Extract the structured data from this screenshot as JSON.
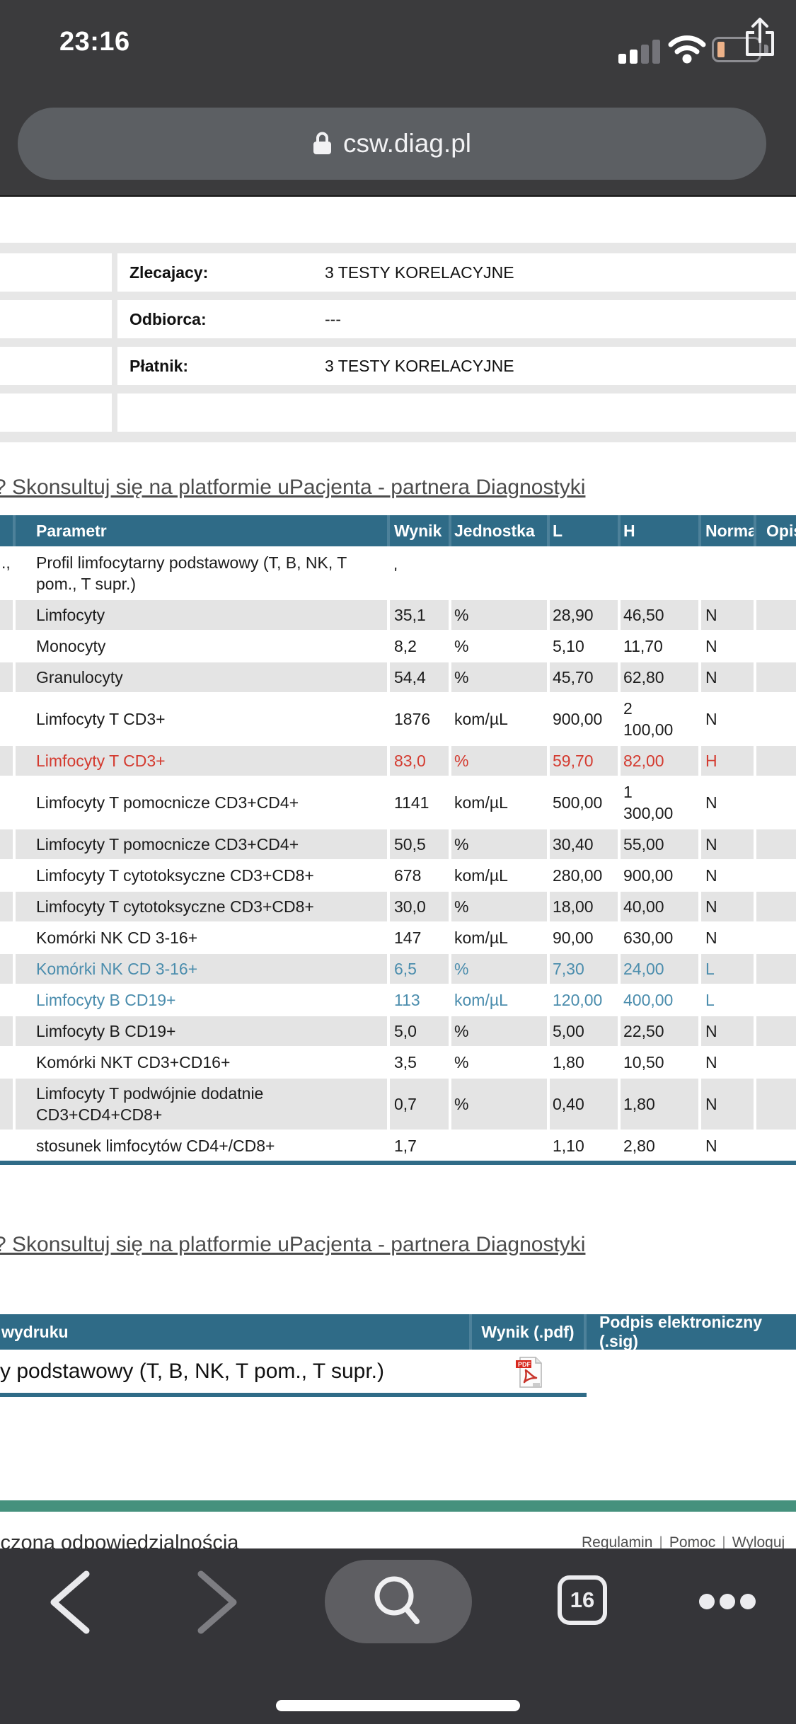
{
  "status_bar": {
    "time": "23:16"
  },
  "url_bar": {
    "domain": "csw.diag.pl"
  },
  "info_table": {
    "rows": [
      {
        "label": "Zlecajacy:",
        "value": "3 TESTY KORELACYJNE"
      },
      {
        "label": "Odbiorca:",
        "value": "---"
      },
      {
        "label": "Płatnik:",
        "value": "3 TESTY KORELACYJNE"
      },
      {
        "label": "",
        "value": ""
      }
    ]
  },
  "consult_link_text": "? Skonsultuj się na platformie uPacjenta - partnera Diagnostyki",
  "results_table": {
    "headers": [
      "Parametr",
      "Wynik",
      "Jednostka",
      "L",
      "H",
      "Norma",
      "Opis"
    ],
    "rows": [
      {
        "frag": ".,",
        "param": "Profil limfocytarny podstawowy (T, B, NK, T pom., T supr.)",
        "wynik": "'",
        "jednostka": "",
        "l": "",
        "h": "",
        "norma": "",
        "opis": "",
        "color": "black",
        "shade": "white"
      },
      {
        "frag": "",
        "param": "Limfocyty",
        "wynik": "35,1",
        "jednostka": "%",
        "l": "28,90",
        "h": "46,50",
        "norma": "N",
        "opis": "",
        "color": "black",
        "shade": "grey"
      },
      {
        "frag": "",
        "param": "Monocyty",
        "wynik": "8,2",
        "jednostka": "%",
        "l": "5,10",
        "h": "11,70",
        "norma": "N",
        "opis": "",
        "color": "black",
        "shade": "white"
      },
      {
        "frag": "",
        "param": "Granulocyty",
        "wynik": "54,4",
        "jednostka": "%",
        "l": "45,70",
        "h": "62,80",
        "norma": "N",
        "opis": "",
        "color": "black",
        "shade": "grey"
      },
      {
        "frag": "",
        "param": "Limfocyty T CD3+",
        "wynik": "1876",
        "jednostka": "kom/µL",
        "l": "900,00",
        "h": "2 100,00",
        "norma": "N",
        "opis": "",
        "color": "black",
        "shade": "white"
      },
      {
        "frag": "",
        "param": "Limfocyty T CD3+",
        "wynik": "83,0",
        "jednostka": "%",
        "l": "59,70",
        "h": "82,00",
        "norma": "H",
        "opis": "",
        "color": "red",
        "shade": "grey"
      },
      {
        "frag": "",
        "param": "Limfocyty T pomocnicze CD3+CD4+",
        "wynik": "1141",
        "jednostka": "kom/µL",
        "l": "500,00",
        "h": "1 300,00",
        "norma": "N",
        "opis": "",
        "color": "black",
        "shade": "white"
      },
      {
        "frag": "",
        "param": "Limfocyty T pomocnicze CD3+CD4+",
        "wynik": "50,5",
        "jednostka": "%",
        "l": "30,40",
        "h": "55,00",
        "norma": "N",
        "opis": "",
        "color": "black",
        "shade": "grey"
      },
      {
        "frag": "",
        "param": "Limfocyty T cytotoksyczne CD3+CD8+",
        "wynik": "678",
        "jednostka": "kom/µL",
        "l": "280,00",
        "h": "900,00",
        "norma": "N",
        "opis": "",
        "color": "black",
        "shade": "white"
      },
      {
        "frag": "",
        "param": "Limfocyty T cytotoksyczne CD3+CD8+",
        "wynik": "30,0",
        "jednostka": "%",
        "l": "18,00",
        "h": "40,00",
        "norma": "N",
        "opis": "",
        "color": "black",
        "shade": "grey"
      },
      {
        "frag": "",
        "param": "Komórki NK CD 3-16+",
        "wynik": "147",
        "jednostka": "kom/µL",
        "l": "90,00",
        "h": "630,00",
        "norma": "N",
        "opis": "",
        "color": "black",
        "shade": "white"
      },
      {
        "frag": "",
        "param": "Komórki NK CD 3-16+",
        "wynik": "6,5",
        "jednostka": "%",
        "l": "7,30",
        "h": "24,00",
        "norma": "L",
        "opis": "",
        "color": "blue",
        "shade": "grey"
      },
      {
        "frag": "",
        "param": "Limfocyty B CD19+",
        "wynik": "113",
        "jednostka": "kom/µL",
        "l": "120,00",
        "h": "400,00",
        "norma": "L",
        "opis": "",
        "color": "blue",
        "shade": "white"
      },
      {
        "frag": "",
        "param": "Limfocyty B CD19+",
        "wynik": "5,0",
        "jednostka": "%",
        "l": "5,00",
        "h": "22,50",
        "norma": "N",
        "opis": "",
        "color": "black",
        "shade": "grey"
      },
      {
        "frag": "",
        "param": "Komórki NKT CD3+CD16+",
        "wynik": "3,5",
        "jednostka": "%",
        "l": "1,80",
        "h": "10,50",
        "norma": "N",
        "opis": "",
        "color": "black",
        "shade": "white"
      },
      {
        "frag": "",
        "param": "Limfocyty T podwójnie dodatnie CD3+CD4+CD8+",
        "wynik": "0,7",
        "jednostka": "%",
        "l": "0,40",
        "h": "1,80",
        "norma": "N",
        "opis": "",
        "color": "black",
        "shade": "grey"
      },
      {
        "frag": "",
        "param": "stosunek limfocytów CD4+/CD8+",
        "wynik": "1,7",
        "jednostka": "",
        "l": "1,10",
        "h": "2,80",
        "norma": "N",
        "opis": "",
        "color": "black",
        "shade": "white"
      }
    ]
  },
  "downloads_table": {
    "headers": [
      "wydruku",
      "Wynik (.pdf)",
      "Podpis elektroniczny (.sig)"
    ],
    "row_name": "y podstawowy (T, B, NK, T pom., T supr.)",
    "pdf_icon": "pdf-file-icon"
  },
  "footer": {
    "left_text": "iczona odpowiedzialnością",
    "links": [
      "Regulamin",
      "Pomoc",
      "Wyloguj"
    ],
    "separator": "|"
  },
  "toolbar": {
    "tab_count": "16"
  },
  "colors": {
    "header_teal": "#2f6b87",
    "row_grey": "#e4e4e4",
    "flag_high_red": "#d43b30",
    "flag_low_blue": "#4b8dad",
    "green_divider": "#45917d",
    "chrome_dark": "#3b3b3d",
    "toolbar_dark": "#353539",
    "battery_fill": "#edb289"
  }
}
